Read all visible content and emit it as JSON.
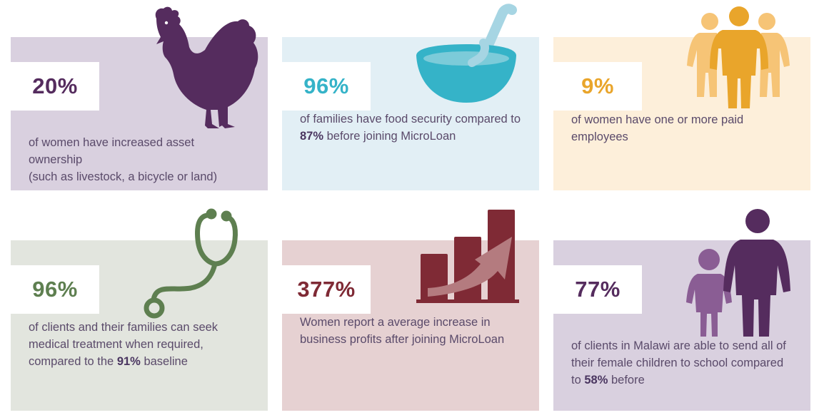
{
  "cards": [
    {
      "stat": "20%",
      "stat_color": "#552c5e",
      "icon": "chicken-icon",
      "desc": [
        "of women have increased asset ownership",
        "(such as livestock, a bicycle or land)"
      ]
    },
    {
      "stat": "96%",
      "stat_color": "#35b3c8",
      "icon": "bowl-icon",
      "desc_pre": "of families have food security compared to",
      "desc_bold": "87%",
      "desc_post": " before joining MicroLoan"
    },
    {
      "stat": "9%",
      "stat_color": "#e9a52b",
      "icon": "people-group-icon",
      "desc": [
        "of women have one or more paid",
        "employees"
      ]
    },
    {
      "stat": "96%",
      "stat_color": "#5e7f50",
      "icon": "stethoscope-icon",
      "desc_lines": [
        "of clients and their families can seek",
        "medical treatment when required,"
      ],
      "desc_pre": "compared to the ",
      "desc_bold": "91%",
      "desc_post": " baseline"
    },
    {
      "stat": "377%",
      "stat_color": "#7f2a35",
      "icon": "growth-chart-icon",
      "desc": [
        "Women report a average increase in",
        "business profits after joining MicroLoan"
      ]
    },
    {
      "stat": "77%",
      "stat_color": "#552c5e",
      "icon": "mother-child-icon",
      "desc_lines": [
        "of clients in Malawi are able to send all of",
        "their female children to school compared"
      ],
      "desc_pre": "to ",
      "desc_bold": "58%",
      "desc_post": " before"
    }
  ]
}
